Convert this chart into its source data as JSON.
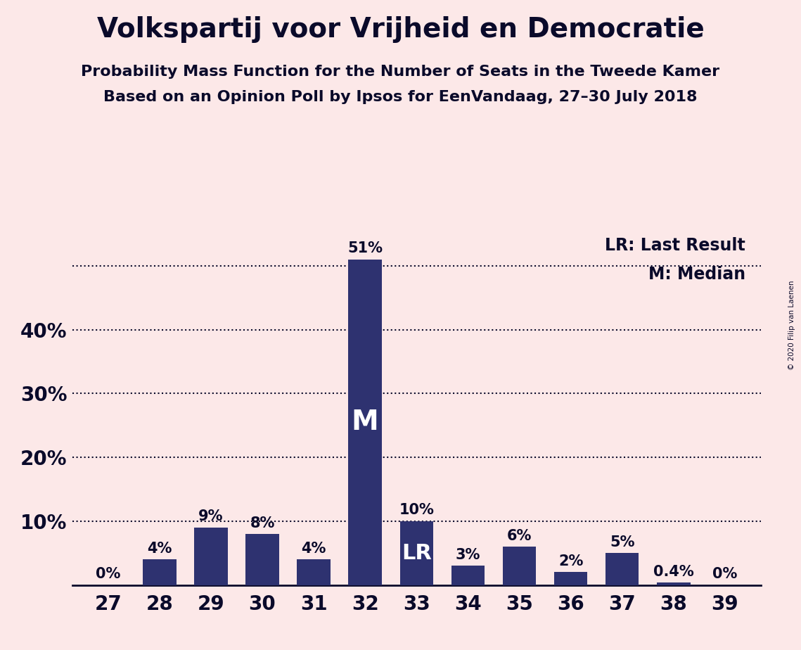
{
  "title": "Volkspartij voor Vrijheid en Democratie",
  "subtitle1": "Probability Mass Function for the Number of Seats in the Tweede Kamer",
  "subtitle2": "Based on an Opinion Poll by Ipsos for EenVandaag, 27–30 July 2018",
  "copyright": "© 2020 Filip van Laenen",
  "categories": [
    27,
    28,
    29,
    30,
    31,
    32,
    33,
    34,
    35,
    36,
    37,
    38,
    39
  ],
  "values": [
    0.0,
    4.0,
    9.0,
    8.0,
    4.0,
    51.0,
    10.0,
    3.0,
    6.0,
    2.0,
    5.0,
    0.4,
    0.0
  ],
  "labels": [
    "0%",
    "4%",
    "9%",
    "8%",
    "4%",
    "51%",
    "10%",
    "3%",
    "6%",
    "2%",
    "5%",
    "0.4%",
    "0%"
  ],
  "bar_color": "#2e3270",
  "background_color": "#fce8e8",
  "text_color": "#0a0a2a",
  "median_seat": 32,
  "lr_seat": 33,
  "legend_lr": "LR: Last Result",
  "legend_m": "M: Median",
  "ylim": [
    0,
    56
  ],
  "yticks": [
    10,
    20,
    30,
    40,
    50
  ],
  "ytick_labels": [
    "",
    "20%",
    "30%",
    "40%",
    ""
  ],
  "dotted_line_y": 10.0,
  "dotted_lines": [
    10,
    20,
    30,
    40,
    50
  ],
  "solid_lines": [
    10,
    20,
    30,
    40
  ],
  "title_fontsize": 28,
  "subtitle_fontsize": 16,
  "label_fontsize": 15,
  "tick_fontsize": 20,
  "legend_fontsize": 17,
  "bar_width": 0.65
}
